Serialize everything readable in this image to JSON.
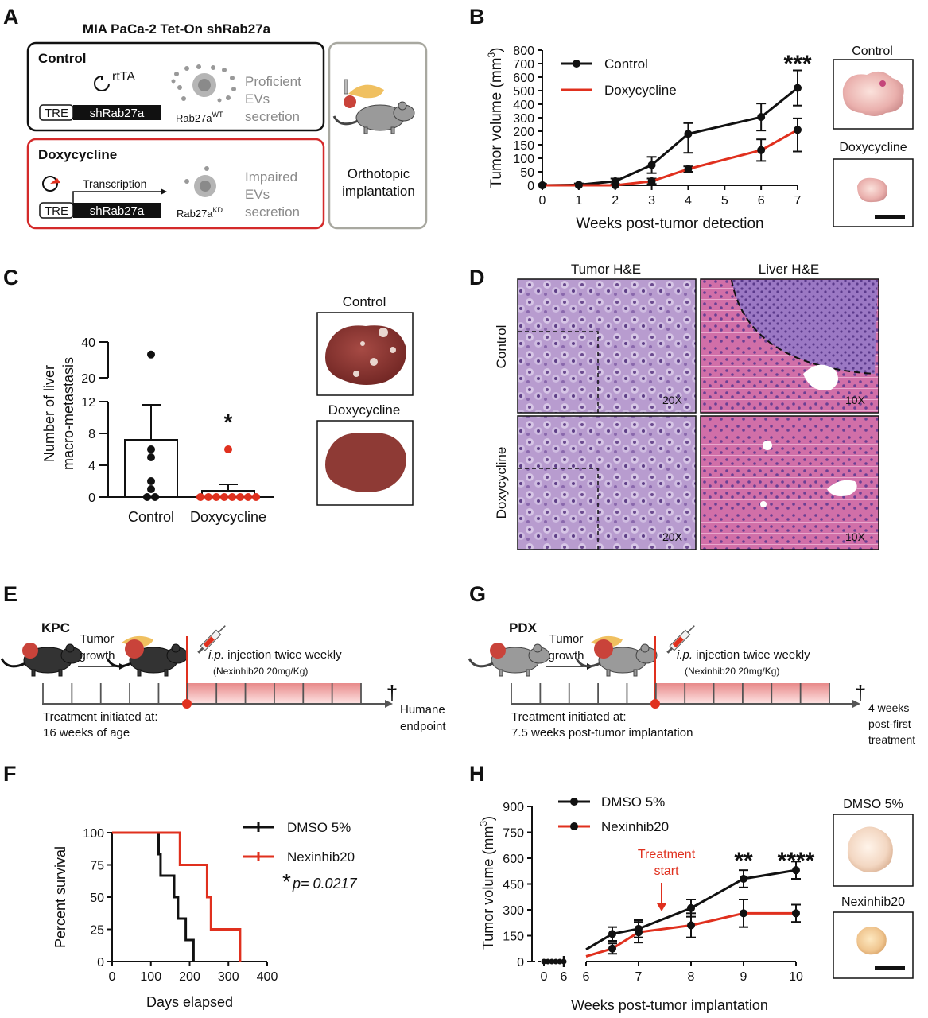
{
  "panel_letters": [
    "A",
    "B",
    "C",
    "D",
    "E",
    "F",
    "G",
    "H"
  ],
  "panelA": {
    "title": "MIA PaCa-2 Tet-On shRab27a",
    "control": {
      "title": "Control",
      "rtta": "rtTA",
      "tre": "TRE",
      "gene": "shRab27a",
      "rab_base": "Rab27a",
      "rab_sup": "WT",
      "eff_1": "Proficient",
      "eff_2": "EVs",
      "eff_3": "secretion"
    },
    "dox": {
      "title": "Doxycycline",
      "transcription": "Transcription",
      "tre": "TRE",
      "gene": "shRab27a",
      "rab_base": "Rab27a",
      "rab_sup": "KD",
      "eff_1": "Impaired",
      "eff_2": "EVs",
      "eff_3": "secretion"
    },
    "implant_1": "Orthotopic",
    "implant_2": "implantation"
  },
  "panelB": {
    "thumb_control": "Control",
    "thumb_dox": "Doxycycline"
  },
  "panelC": {
    "thumb_control": "Control",
    "thumb_dox": "Doxycycline"
  },
  "panelD": {
    "col1": "Tumor H&E",
    "col2": "Liver H&E",
    "row1": "Control",
    "row2": "Doxycycline",
    "mag_20": "20X",
    "mag_10": "10X"
  },
  "panelE": {
    "model": "KPC",
    "growth_1": "Tumor",
    "growth_2": "growth",
    "inj_ip": "i.p.",
    "inj_rest": " injection twice weekly",
    "dose": "(Nexinhib20 20mg/Kg)",
    "init_1": "Treatment initiated at:",
    "init_2": "16 weeks of age",
    "dagger": "†",
    "end_1": "Humane",
    "end_2": "endpoint"
  },
  "panelG": {
    "model": "PDX",
    "growth_1": "Tumor",
    "growth_2": "growth",
    "inj_ip": "i.p.",
    "inj_rest": " injection twice weekly",
    "dose": "(Nexinhib20 20mg/Kg)",
    "init_1": "Treatment initiated at:",
    "init_2": "7.5 weeks post-tumor implantation",
    "dagger": "†",
    "end_1": "4 weeks",
    "end_2": "post-first",
    "end_3": "treatment"
  },
  "panelH": {
    "thumb_dmso": "DMSO 5%",
    "thumb_nex": "Nexinhib20",
    "annotation_1": "Treatment",
    "annotation_2": "start"
  },
  "colors": {
    "black_series": "#111111",
    "red_series": "#e0301e",
    "box_control": "#111111",
    "box_dox": "#d42a2a",
    "box_implant": "#a8a8a0",
    "timeline_fill": "#f5b5b5"
  },
  "chart_data": [
    {
      "panel": "B",
      "type": "line",
      "xlabel": "Weeks post-tumor detection",
      "ylabel_base": "Tumor volume (mm",
      "ylabel_sup": "3",
      "ylabel_end": ")",
      "xlim": [
        0,
        7
      ],
      "ylim": [
        0,
        800
      ],
      "xticks": [
        0,
        1,
        2,
        3,
        4,
        5,
        6,
        7
      ],
      "yticks": [
        0,
        50,
        100,
        150,
        200,
        300,
        400,
        500,
        600,
        700,
        800
      ],
      "legend_placement": "top-left",
      "significance": [
        {
          "x": 7,
          "label": "***"
        }
      ],
      "series": [
        {
          "name": "Control",
          "x": [
            0,
            1,
            2,
            3,
            4,
            6,
            7
          ],
          "y": [
            0,
            2,
            15,
            75,
            190,
            305,
            520
          ],
          "err": [
            5,
            5,
            10,
            30,
            70,
            100,
            130
          ]
        },
        {
          "name": "Doxycycline",
          "x": [
            0,
            1,
            2,
            3,
            4,
            6,
            7
          ],
          "y": [
            0,
            0,
            0,
            15,
            60,
            130,
            210
          ],
          "err": [
            3,
            3,
            3,
            10,
            10,
            40,
            85
          ]
        }
      ]
    },
    {
      "panel": "C",
      "type": "scatter",
      "ylabel_1": "Number of liver",
      "ylabel_2": "macro-metastasis",
      "categories": [
        "Control",
        "Doxycycline"
      ],
      "yticks": [
        0,
        4,
        8,
        12,
        20,
        40
      ],
      "broken_axis": true,
      "bar_mean": [
        7.2,
        0.8
      ],
      "bar_sem": [
        4.4,
        0.8
      ],
      "points": [
        [
          0,
          0,
          1,
          2,
          5,
          6,
          33
        ],
        [
          0,
          0,
          0,
          0,
          0,
          0,
          0,
          0,
          6
        ]
      ],
      "significance": [
        {
          "category": "Doxycycline",
          "label": "*"
        }
      ]
    },
    {
      "panel": "F",
      "type": "line",
      "xlabel": "Days elapsed",
      "ylabel": "Percent survival",
      "xlim": [
        0,
        400
      ],
      "ylim": [
        0,
        100
      ],
      "xticks": [
        0,
        100,
        200,
        300,
        400
      ],
      "yticks": [
        0,
        25,
        50,
        75,
        100
      ],
      "legend_placement": "top-right",
      "p_star": "*",
      "p_text": "p= 0.0217",
      "series": [
        {
          "name": "DMSO 5%",
          "x": [
            0,
            120,
            125,
            135,
            160,
            170,
            190,
            210
          ],
          "y": [
            100,
            83.3,
            66.7,
            66.7,
            50,
            33.3,
            16.7,
            0
          ]
        },
        {
          "name": "Nexinhib20",
          "x": [
            0,
            175,
            245,
            255,
            330
          ],
          "y": [
            100,
            75,
            50,
            25,
            0
          ]
        }
      ]
    },
    {
      "panel": "H",
      "type": "line",
      "xlabel": "Weeks post-tumor implantation",
      "ylabel_base": "Tumor volume (mm",
      "ylabel_sup": "3",
      "ylabel_end": ")",
      "ylim": [
        0,
        900
      ],
      "yticks": [
        0,
        150,
        300,
        450,
        600,
        750,
        900
      ],
      "xticks_left": [
        0,
        6
      ],
      "xticks_right": [
        6,
        7,
        8,
        9,
        10
      ],
      "broken_axis": true,
      "legend_placement": "top-left",
      "significance": [
        {
          "x": 9,
          "label": "**"
        },
        {
          "x": 10,
          "label": "****"
        }
      ],
      "series": [
        {
          "name": "DMSO 5%",
          "x": [
            6,
            6.5,
            7,
            8,
            9,
            10
          ],
          "y": [
            70,
            160,
            190,
            310,
            480,
            530
          ],
          "err": [
            0,
            40,
            50,
            50,
            50,
            50
          ]
        },
        {
          "name": "Nexinhib20",
          "x": [
            6,
            6.5,
            7,
            8,
            9,
            10
          ],
          "y": [
            30,
            75,
            170,
            210,
            280,
            280
          ],
          "err": [
            0,
            30,
            60,
            70,
            80,
            50
          ]
        }
      ]
    }
  ]
}
